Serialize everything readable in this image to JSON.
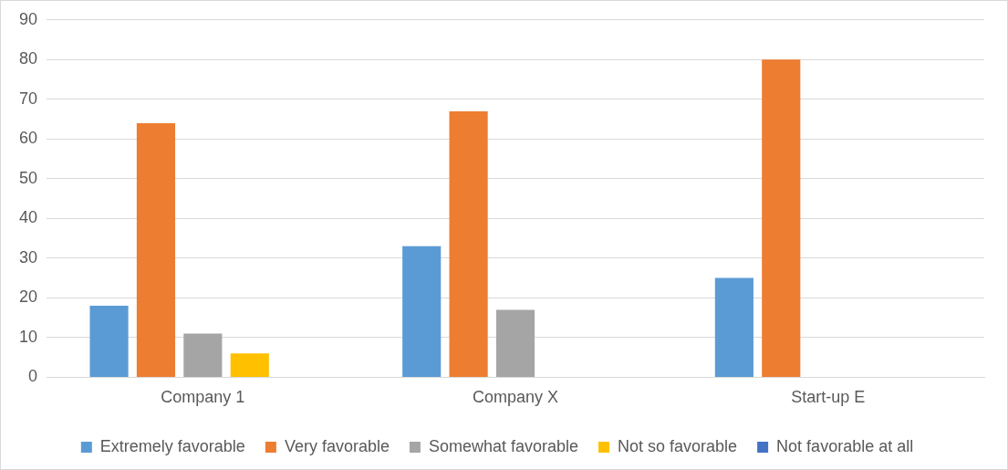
{
  "chart_data": {
    "type": "bar",
    "categories": [
      "Company 1",
      "Company X",
      "Start-up E"
    ],
    "series": [
      {
        "name": "Extremely favorable",
        "color": "#5b9bd5",
        "values": [
          18,
          33,
          25
        ]
      },
      {
        "name": "Very favorable",
        "color": "#ed7d31",
        "values": [
          64,
          67,
          80
        ]
      },
      {
        "name": "Somewhat favorable",
        "color": "#a5a5a5",
        "values": [
          11,
          17,
          0
        ]
      },
      {
        "name": "Not so favorable",
        "color": "#ffc000",
        "values": [
          6,
          0,
          0
        ]
      },
      {
        "name": "Not favorable at all",
        "color": "#4472c4",
        "values": [
          0,
          0,
          0
        ]
      }
    ],
    "ylim": [
      0,
      90
    ],
    "yticks": [
      0,
      10,
      20,
      30,
      40,
      50,
      60,
      70,
      80,
      90
    ],
    "grid": "y",
    "legend": "bottom"
  }
}
